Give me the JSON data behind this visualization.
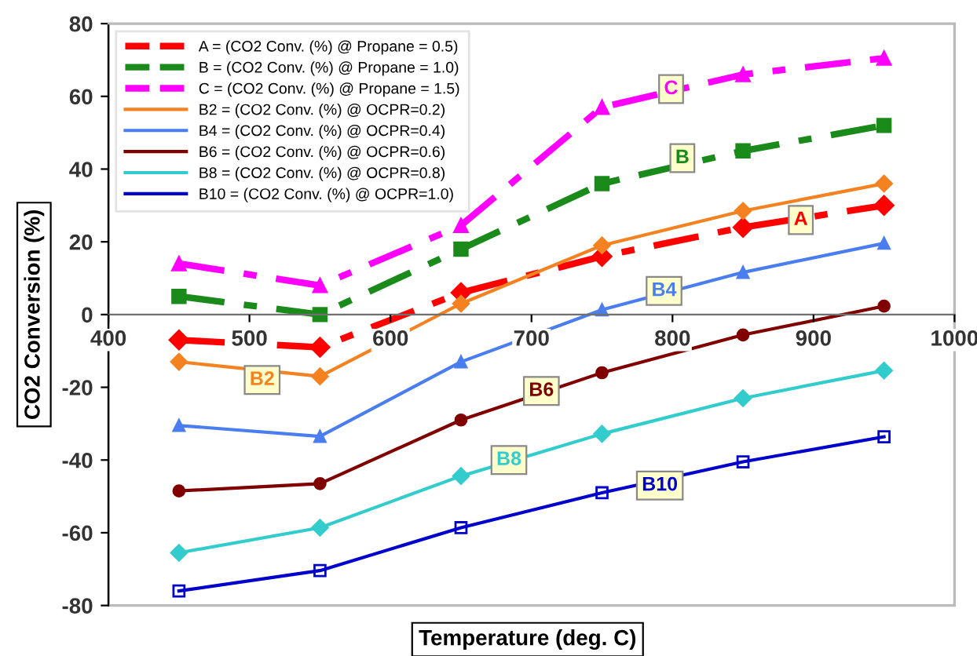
{
  "chart_data": {
    "type": "line",
    "xlabel": "Temperature (deg. C)",
    "ylabel": "CO2 Conversion (%)",
    "x": [
      450,
      550,
      650,
      750,
      850,
      950
    ],
    "xlim": [
      400,
      1000
    ],
    "xticks": [
      400,
      500,
      600,
      700,
      800,
      900,
      1000
    ],
    "ylim": [
      -80,
      80
    ],
    "yticks": [
      -80,
      -60,
      -40,
      -20,
      0,
      20,
      40,
      60,
      80
    ],
    "grid": false,
    "legend": "top left",
    "series": [
      {
        "name": "A = (CO2 Conv. (%) @ Propane = 0.5)",
        "color": "#ff0000",
        "marker": "diamond",
        "line_style": "dashed",
        "values": [
          -7,
          -9,
          6,
          16,
          24,
          30
        ]
      },
      {
        "name": "B = (CO2 Conv. (%) @ Propane = 1.0)",
        "color": "#1a8a1a",
        "marker": "square",
        "line_style": "dashed",
        "values": [
          5,
          0,
          18,
          36,
          45,
          52
        ]
      },
      {
        "name": "C = (CO2 Conv. (%) @ Propane = 1.5)",
        "color": "#ff00ff",
        "marker": "triangle",
        "line_style": "dashed",
        "values": [
          14,
          8,
          24.5,
          57,
          66,
          70.5
        ]
      },
      {
        "name": "B2 = (CO2 Conv. (%) @ OCPR=0.2)",
        "color": "#f58220",
        "marker": "diamond",
        "line_style": "solid",
        "values": [
          -13,
          -17,
          3,
          19,
          28.5,
          36
        ]
      },
      {
        "name": "B4 = (CO2 Conv. (%) @ OCPR=0.4)",
        "color": "#4a7ef0",
        "marker": "triangle",
        "line_style": "solid",
        "values": [
          -30.5,
          -33.5,
          -13,
          1.3,
          11.6,
          19.6
        ]
      },
      {
        "name": "B6 = (CO2 Conv. (%) @ OCPR=0.6)",
        "color": "#800000",
        "marker": "circle",
        "line_style": "solid",
        "values": [
          -48.5,
          -46.5,
          -29,
          -16,
          -5.6,
          2.3
        ]
      },
      {
        "name": "B8 = (CO2 Conv. (%) @ OCPR=0.8)",
        "color": "#33cccc",
        "marker": "diamond",
        "line_style": "solid",
        "values": [
          -65.5,
          -58.6,
          -44.4,
          -32.8,
          -23,
          -15.4
        ]
      },
      {
        "name": "B10 = (CO2 Conv. (%) @ OCPR=1.0)",
        "color": "#0000cc",
        "marker": "square",
        "line_style": "solid",
        "values": [
          -76,
          -70.4,
          -58.6,
          -49,
          -40.5,
          -33.6
        ]
      }
    ],
    "annotations": [
      {
        "text": "A",
        "x": 891,
        "y": 26
      },
      {
        "text": "B",
        "x": 807,
        "y": 43
      },
      {
        "text": "C",
        "x": 799,
        "y": 62
      },
      {
        "text": "B2",
        "x": 509,
        "y": -18
      },
      {
        "text": "B4",
        "x": 794,
        "y": 6.5
      },
      {
        "text": "B6",
        "x": 707,
        "y": -21
      },
      {
        "text": "B8",
        "x": 684,
        "y": -40
      },
      {
        "text": "B10",
        "x": 791,
        "y": -47
      }
    ]
  }
}
